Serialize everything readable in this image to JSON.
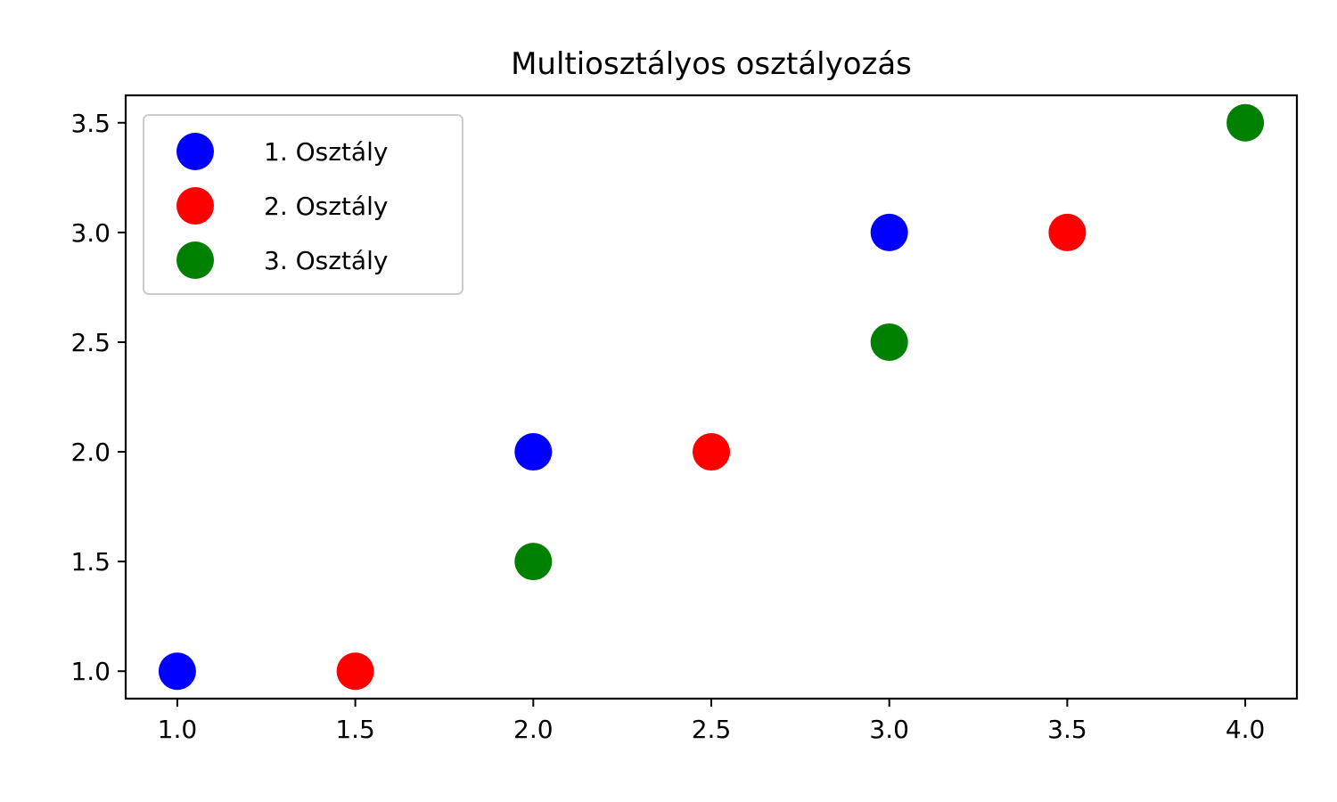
{
  "chart_data": {
    "type": "scatter",
    "title": "Multiosztályos osztályozás",
    "xlabel": "",
    "ylabel": "",
    "xlim": [
      0.855,
      4.145
    ],
    "ylim": [
      0.875,
      3.625
    ],
    "x_ticks": [
      "1.0",
      "1.5",
      "2.0",
      "2.5",
      "3.0",
      "3.5",
      "4.0"
    ],
    "y_ticks": [
      "1.0",
      "1.5",
      "2.0",
      "2.5",
      "3.0",
      "3.5"
    ],
    "grid": false,
    "legend_position": "top-left",
    "series": [
      {
        "name": "1. Osztály",
        "color": "#0000ff",
        "points": [
          [
            1.0,
            1.0
          ],
          [
            2.0,
            2.0
          ],
          [
            3.0,
            3.0
          ]
        ]
      },
      {
        "name": "2. Osztály",
        "color": "#ff0000",
        "points": [
          [
            1.5,
            1.0
          ],
          [
            2.5,
            2.0
          ],
          [
            3.5,
            3.0
          ]
        ]
      },
      {
        "name": "3. Osztály",
        "color": "#008000",
        "points": [
          [
            2.0,
            1.5
          ],
          [
            3.0,
            2.5
          ],
          [
            4.0,
            3.5
          ]
        ]
      }
    ]
  }
}
